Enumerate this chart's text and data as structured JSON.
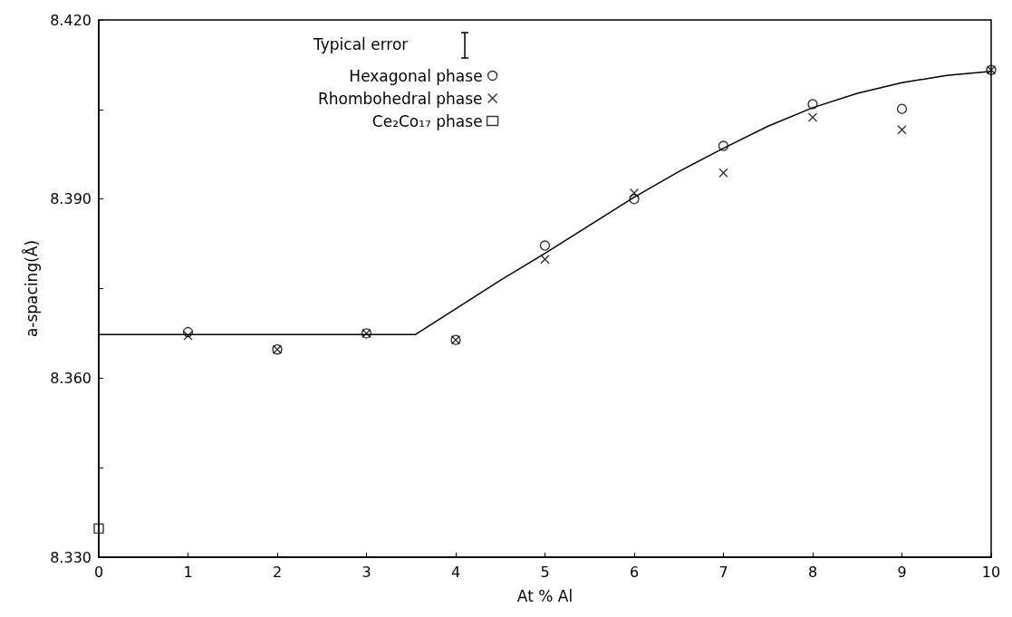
{
  "chart_data": {
    "type": "scatter",
    "xlabel": "At % Al",
    "ylabel": "a-spacing(Å)",
    "annotations": [
      "Typical error"
    ],
    "xlim": [
      0,
      10
    ],
    "xticks": [
      0,
      1,
      2,
      3,
      4,
      5,
      6,
      7,
      8,
      9,
      10
    ],
    "ylim": [
      8.33,
      8.42
    ],
    "yticks": [
      {
        "value": 8.33,
        "label": "8.330"
      },
      {
        "value": 8.345,
        "label": null
      },
      {
        "value": 8.36,
        "label": "8.360"
      },
      {
        "value": 8.375,
        "label": null
      },
      {
        "value": 8.39,
        "label": "8.390"
      },
      {
        "value": 8.405,
        "label": null
      },
      {
        "value": 8.42,
        "label": "8.420"
      }
    ],
    "grid": false,
    "legend": "top",
    "series": [
      {
        "name": "Hexagonal phase",
        "color": "#000000",
        "marker": "circle",
        "x": [
          1,
          2,
          3,
          4,
          5,
          6,
          7,
          8,
          9,
          10
        ],
        "values": [
          8.3677,
          8.3648,
          8.3675,
          8.3664,
          8.3822,
          8.39,
          8.3989,
          8.4059,
          8.4051,
          8.4116
        ]
      },
      {
        "name": "Rhombohedral phase",
        "color": "#000000",
        "marker": "cross",
        "x": [
          1,
          2,
          3,
          4,
          5,
          6,
          7,
          8,
          9,
          10
        ],
        "values": [
          8.3671,
          8.3648,
          8.3675,
          8.3664,
          8.3799,
          8.391,
          8.3944,
          8.4037,
          8.4016,
          8.4116
        ]
      },
      {
        "name": "Ce₂Co₁₇ phase",
        "color": "#000000",
        "marker": "square",
        "x": [
          0
        ],
        "values": [
          8.3348
        ]
      },
      {
        "type": "line",
        "color": "#000000",
        "marker": "none",
        "line_style": "solid",
        "x": [
          0,
          3.55,
          4.5,
          5,
          5.5,
          6,
          6.5,
          7,
          7.5,
          8,
          8.5,
          9,
          9.5,
          10
        ],
        "values": [
          8.3673,
          8.3673,
          8.3764,
          8.3809,
          8.3856,
          8.3903,
          8.3946,
          8.3985,
          8.4022,
          8.4053,
          8.4077,
          8.4095,
          8.4107,
          8.4114
        ]
      }
    ]
  }
}
